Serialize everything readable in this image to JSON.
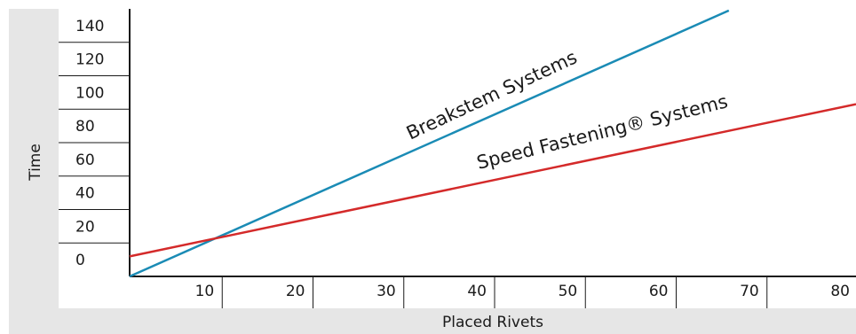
{
  "chart_data": {
    "type": "line",
    "title": "",
    "xlabel": "Placed Rivets",
    "ylabel": "Time",
    "x_ticks": [
      "10",
      "20",
      "30",
      "40",
      "50",
      "60",
      "70",
      "80"
    ],
    "y_ticks": [
      "0",
      "20",
      "40",
      "60",
      "80",
      "100",
      "120",
      "140"
    ],
    "xlim": [
      0,
      80
    ],
    "ylim": [
      -10,
      150
    ],
    "grid": false,
    "legend": "none",
    "series": [
      {
        "name": "Breakstem Systems",
        "color": "#1a8bb5",
        "x": [
          0,
          66
        ],
        "y": [
          -10,
          149
        ]
      },
      {
        "name": "Speed Fastening® Systems",
        "color": "#d42a2a",
        "x": [
          0,
          80
        ],
        "y": [
          2,
          93
        ]
      }
    ]
  }
}
